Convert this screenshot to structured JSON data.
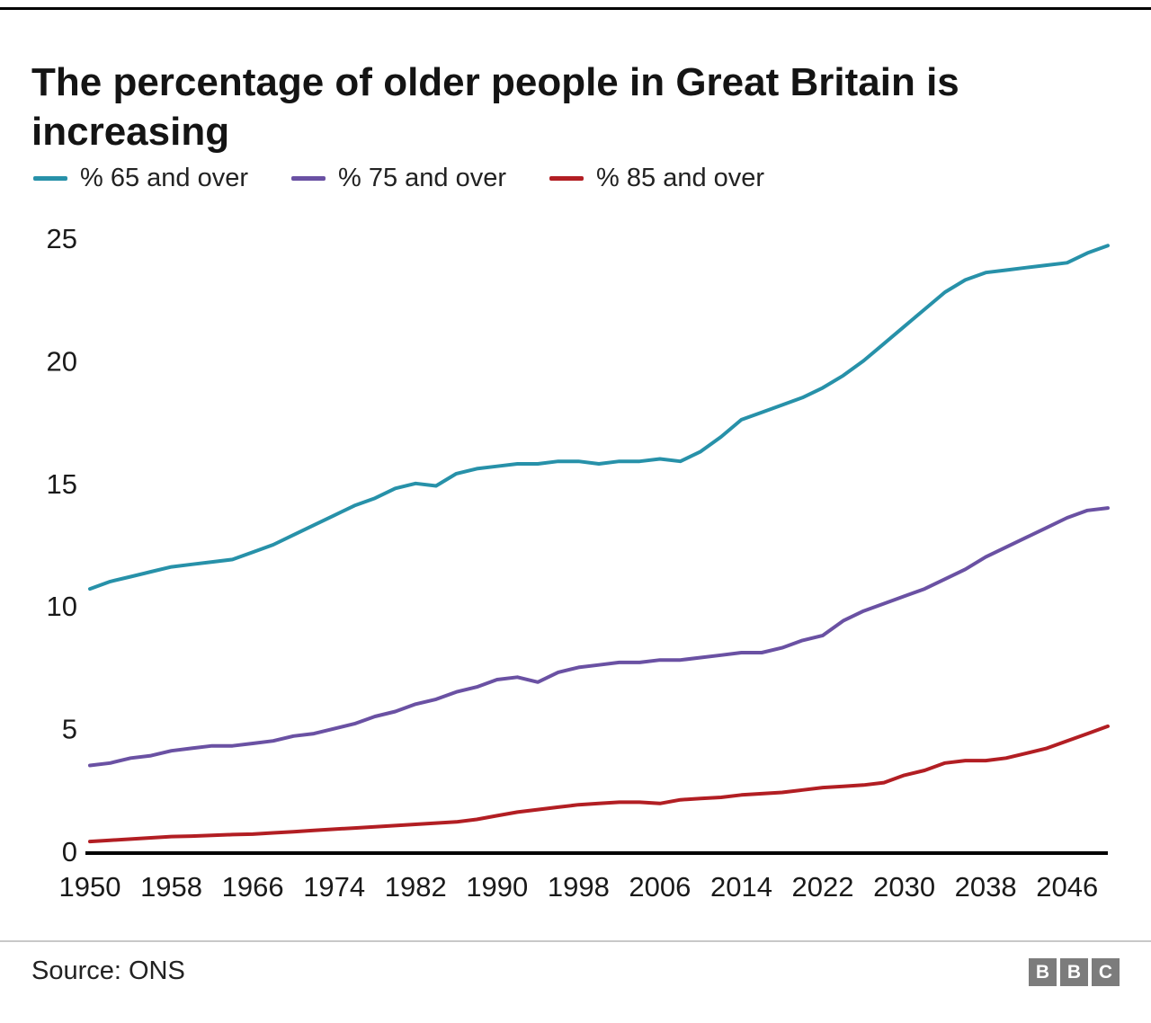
{
  "title": "The percentage of older people in Great Britain is increasing",
  "source": "Source: ONS",
  "logo": {
    "letters": [
      "B",
      "B",
      "C"
    ]
  },
  "chart_data": {
    "type": "line",
    "title": "The percentage of older people in Great Britain is increasing",
    "xlabel": "",
    "ylabel": "",
    "grid": false,
    "legend_position": "top",
    "x_range": [
      1950,
      2050
    ],
    "y_range": [
      0,
      25
    ],
    "x_ticks": [
      "1950",
      "1958",
      "1966",
      "1974",
      "1982",
      "1990",
      "1998",
      "2006",
      "2014",
      "2022",
      "2030",
      "2038",
      "2046"
    ],
    "y_ticks": [
      "0",
      "5",
      "10",
      "15",
      "20",
      "25"
    ],
    "x_start": 1950,
    "x_step": 2,
    "series": [
      {
        "name": "% 65 and over",
        "color": "#2791A9",
        "values": [
          10.7,
          11.0,
          11.2,
          11.4,
          11.6,
          11.7,
          11.8,
          11.9,
          12.2,
          12.5,
          12.9,
          13.3,
          13.7,
          14.1,
          14.4,
          14.8,
          15.0,
          14.9,
          15.4,
          15.6,
          15.7,
          15.8,
          15.8,
          15.9,
          15.9,
          15.8,
          15.9,
          15.9,
          16.0,
          15.9,
          16.3,
          16.9,
          17.6,
          17.9,
          18.2,
          18.5,
          18.9,
          19.4,
          20.0,
          20.7,
          21.4,
          22.1,
          22.8,
          23.3,
          23.6,
          23.7,
          23.8,
          23.9,
          24.0,
          24.4,
          24.7
        ]
      },
      {
        "name": "% 75 and over",
        "color": "#6A51A3",
        "values": [
          3.5,
          3.6,
          3.8,
          3.9,
          4.1,
          4.2,
          4.3,
          4.3,
          4.4,
          4.5,
          4.7,
          4.8,
          5.0,
          5.2,
          5.5,
          5.7,
          6.0,
          6.2,
          6.5,
          6.7,
          7.0,
          7.1,
          6.9,
          7.3,
          7.5,
          7.6,
          7.7,
          7.7,
          7.8,
          7.8,
          7.9,
          8.0,
          8.1,
          8.1,
          8.3,
          8.6,
          8.8,
          9.4,
          9.8,
          10.1,
          10.4,
          10.7,
          11.1,
          11.5,
          12.0,
          12.4,
          12.8,
          13.2,
          13.6,
          13.9,
          14.0
        ]
      },
      {
        "name": "% 85 and over",
        "color": "#B21E23",
        "values": [
          0.4,
          0.45,
          0.5,
          0.55,
          0.6,
          0.62,
          0.65,
          0.68,
          0.7,
          0.75,
          0.8,
          0.85,
          0.9,
          0.95,
          1.0,
          1.05,
          1.1,
          1.15,
          1.2,
          1.3,
          1.45,
          1.6,
          1.7,
          1.8,
          1.9,
          1.95,
          2.0,
          2.0,
          1.95,
          2.1,
          2.15,
          2.2,
          2.3,
          2.35,
          2.4,
          2.5,
          2.6,
          2.65,
          2.7,
          2.8,
          3.1,
          3.3,
          3.6,
          3.7,
          3.7,
          3.8,
          4.0,
          4.2,
          4.5,
          4.8,
          5.1
        ]
      }
    ]
  }
}
